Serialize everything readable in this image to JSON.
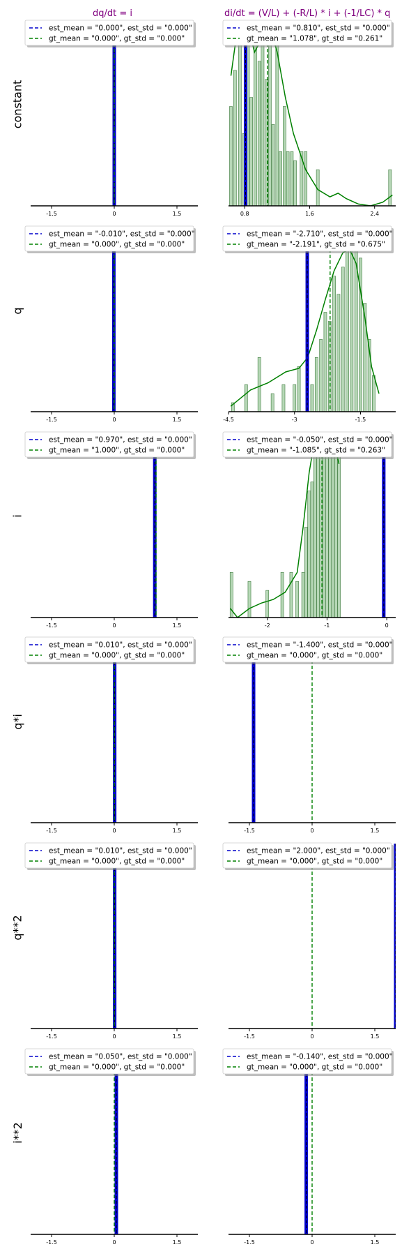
{
  "column_titles": [
    "dq/dt = i",
    "di/dt = (V/L) + (-R/L) * i + (-1/LC) * q"
  ],
  "row_labels": [
    "constant",
    "q",
    "i",
    "q*i",
    "q**2",
    "i**2"
  ],
  "colors": {
    "est": "#0000cc",
    "gt": "#008000",
    "title": "#800080",
    "hist_fill": "#b6d7b6"
  },
  "chart_data": [
    {
      "type": "histogram",
      "row": "constant",
      "column": "dq/dt = i",
      "xlim": [
        -2.0,
        2.0
      ],
      "xticks": [
        -1.5,
        0.0,
        1.5
      ],
      "legend": {
        "est": "est_mean = \"0.000\", est_std = \"0.000\"",
        "gt": "gt_mean = \"0.000\", gt_std = \"0.000\""
      },
      "est_mean": 0.0,
      "est_std": 0.0,
      "gt_mean": 0.0,
      "gt_std": 0.0,
      "gt_hist": []
    },
    {
      "type": "histogram",
      "row": "constant",
      "column": "di/dt = (V/L) + (-R/L) * i + (-1/LC) * q",
      "xlim": [
        0.6,
        2.66
      ],
      "xticks": [
        0.8,
        1.6,
        2.4
      ],
      "legend": {
        "est": "est_mean = \"0.810\", est_std = \"0.000\"",
        "gt": "gt_mean = \"1.078\", gt_std = \"0.261\""
      },
      "est_mean": 0.81,
      "est_std": 0.0,
      "gt_mean": 1.078,
      "gt_std": 0.261,
      "gt_hist": [
        [
          0.63,
          0.55
        ],
        [
          0.68,
          0.75
        ],
        [
          0.74,
          1.0
        ],
        [
          0.79,
          0.4
        ],
        [
          0.84,
          1.0
        ],
        [
          0.88,
          0.6
        ],
        [
          0.93,
          1.0
        ],
        [
          0.98,
          0.8
        ],
        [
          1.02,
          1.0
        ],
        [
          1.07,
          0.7
        ],
        [
          1.11,
          1.0
        ],
        [
          1.15,
          0.45
        ],
        [
          1.2,
          1.0
        ],
        [
          1.24,
          0.3
        ],
        [
          1.29,
          0.55
        ],
        [
          1.33,
          0.3
        ],
        [
          1.38,
          0.3
        ],
        [
          1.42,
          0.25
        ],
        [
          1.5,
          0.3
        ],
        [
          1.55,
          0.3
        ],
        [
          1.7,
          0.2
        ],
        [
          2.59,
          0.2
        ]
      ],
      "gt_kde": [
        [
          0.63,
          0.72
        ],
        [
          0.7,
          0.95
        ],
        [
          0.78,
          1.02
        ],
        [
          0.85,
          0.98
        ],
        [
          0.92,
          0.85
        ],
        [
          0.98,
          0.9
        ],
        [
          1.05,
          0.97
        ],
        [
          1.1,
          1.0
        ],
        [
          1.2,
          0.85
        ],
        [
          1.3,
          0.6
        ],
        [
          1.4,
          0.4
        ],
        [
          1.55,
          0.2
        ],
        [
          1.7,
          0.09
        ],
        [
          1.85,
          0.05
        ],
        [
          1.95,
          0.07
        ],
        [
          2.05,
          0.04
        ],
        [
          2.2,
          0.01
        ],
        [
          2.35,
          0.0
        ],
        [
          2.5,
          0.02
        ],
        [
          2.62,
          0.06
        ]
      ]
    },
    {
      "type": "histogram",
      "row": "q",
      "column": "dq/dt = i",
      "xlim": [
        -2.0,
        2.0
      ],
      "xticks": [
        -1.5,
        0.0,
        1.5
      ],
      "legend": {
        "est": "est_mean = \"-0.010\", est_std = \"0.000\"",
        "gt": "gt_mean = \"0.000\", gt_std = \"0.000\""
      },
      "est_mean": -0.01,
      "est_std": 0.0,
      "gt_mean": 0.0,
      "gt_std": 0.0,
      "gt_hist": []
    },
    {
      "type": "histogram",
      "row": "q",
      "column": "di/dt = (V/L) + (-R/L) * i + (-1/LC) * q",
      "xlim": [
        -4.5,
        -0.7
      ],
      "xticks": [
        -4.5,
        -3.0,
        -1.5
      ],
      "legend": {
        "est": "est_mean = \"-2.710\", est_std = \"0.000\"",
        "gt": "gt_mean = \"-2.191\", gt_std = \"0.675\""
      },
      "est_mean": -2.71,
      "est_std": 0.0,
      "gt_mean": -2.191,
      "gt_std": 0.675,
      "gt_hist": [
        [
          -4.4,
          0.05
        ],
        [
          -4.1,
          0.15
        ],
        [
          -3.8,
          0.3
        ],
        [
          -3.5,
          0.1
        ],
        [
          -3.25,
          0.15
        ],
        [
          -3.0,
          0.15
        ],
        [
          -2.9,
          0.25
        ],
        [
          -2.6,
          0.15
        ],
        [
          -2.5,
          0.3
        ],
        [
          -2.4,
          0.4
        ],
        [
          -2.3,
          0.55
        ],
        [
          -2.2,
          0.5
        ],
        [
          -2.1,
          0.75
        ],
        [
          -2.0,
          0.65
        ],
        [
          -1.9,
          0.8
        ],
        [
          -1.8,
          0.95
        ],
        [
          -1.7,
          1.0
        ],
        [
          -1.6,
          1.0
        ],
        [
          -1.5,
          0.85
        ],
        [
          -1.4,
          0.6
        ],
        [
          -1.3,
          0.4
        ],
        [
          -1.2,
          0.2
        ]
      ],
      "gt_kde": [
        [
          -4.45,
          0.03
        ],
        [
          -4.2,
          0.08
        ],
        [
          -4.0,
          0.12
        ],
        [
          -3.6,
          0.16
        ],
        [
          -3.2,
          0.22
        ],
        [
          -2.9,
          0.24
        ],
        [
          -2.7,
          0.3
        ],
        [
          -2.5,
          0.45
        ],
        [
          -2.3,
          0.62
        ],
        [
          -2.1,
          0.78
        ],
        [
          -1.9,
          0.88
        ],
        [
          -1.75,
          0.9
        ],
        [
          -1.6,
          0.82
        ],
        [
          -1.4,
          0.52
        ],
        [
          -1.25,
          0.25
        ],
        [
          -1.08,
          0.1
        ]
      ]
    },
    {
      "type": "histogram",
      "row": "i",
      "column": "dq/dt = i",
      "xlim": [
        -2.0,
        2.0
      ],
      "xticks": [
        -1.5,
        0.0,
        1.5
      ],
      "legend": {
        "est": "est_mean = \"0.970\", est_std = \"0.000\"",
        "gt": "gt_mean = \"1.000\", gt_std = \"0.000\""
      },
      "est_mean": 0.97,
      "est_std": 0.0,
      "gt_mean": 1.0,
      "gt_std": 0.0,
      "gt_hist": []
    },
    {
      "type": "histogram",
      "row": "i",
      "column": "di/dt = (V/L) + (-R/L) * i + (-1/LC) * q",
      "xlim": [
        -2.65,
        0.15
      ],
      "xticks": [
        -2,
        -1,
        0
      ],
      "legend": {
        "est": "est_mean = \"-0.050\", est_std = \"0.000\"",
        "gt": "gt_mean = \"-1.085\", gt_std = \"0.263\""
      },
      "est_mean": -0.05,
      "est_std": 0.0,
      "gt_mean": -1.085,
      "gt_std": 0.263,
      "gt_hist": [
        [
          -2.6,
          0.25
        ],
        [
          -2.3,
          0.2
        ],
        [
          -2.0,
          0.15
        ],
        [
          -1.75,
          0.25
        ],
        [
          -1.6,
          0.25
        ],
        [
          -1.5,
          0.2
        ],
        [
          -1.4,
          0.25
        ],
        [
          -1.35,
          0.5
        ],
        [
          -1.3,
          0.7
        ],
        [
          -1.25,
          0.75
        ],
        [
          -1.2,
          1.0
        ],
        [
          -1.15,
          0.9
        ],
        [
          -1.1,
          1.0
        ],
        [
          -1.05,
          0.95
        ],
        [
          -1.0,
          0.95
        ],
        [
          -0.95,
          1.0
        ],
        [
          -0.9,
          1.0
        ],
        [
          -0.85,
          1.0
        ],
        [
          -0.8,
          0.95
        ]
      ],
      "gt_kde": [
        [
          -2.62,
          0.05
        ],
        [
          -2.5,
          0.0
        ],
        [
          -2.3,
          0.05
        ],
        [
          -2.1,
          0.08
        ],
        [
          -1.9,
          0.1
        ],
        [
          -1.7,
          0.14
        ],
        [
          -1.5,
          0.25
        ],
        [
          -1.4,
          0.5
        ],
        [
          -1.3,
          0.8
        ],
        [
          -1.2,
          1.0
        ],
        [
          -1.1,
          1.0
        ],
        [
          -1.0,
          1.0
        ],
        [
          -0.9,
          1.0
        ],
        [
          -0.8,
          0.85
        ]
      ]
    },
    {
      "type": "histogram",
      "row": "q*i",
      "column": "dq/dt = i",
      "xlim": [
        -2.0,
        2.0
      ],
      "xticks": [
        -1.5,
        0.0,
        1.5
      ],
      "legend": {
        "est": "est_mean = \"0.010\", est_std = \"0.000\"",
        "gt": "gt_mean = \"0.000\", gt_std = \"0.000\""
      },
      "est_mean": 0.01,
      "est_std": 0.0,
      "gt_mean": 0.0,
      "gt_std": 0.0,
      "gt_hist": []
    },
    {
      "type": "histogram",
      "row": "q*i",
      "column": "di/dt = (V/L) + (-R/L) * i + (-1/LC) * q",
      "xlim": [
        -2.0,
        2.0
      ],
      "xticks": [
        -1.5,
        0.0,
        1.5
      ],
      "legend": {
        "est": "est_mean = \"-1.400\", est_std = \"0.000\"",
        "gt": "gt_mean = \"0.000\", gt_std = \"0.000\""
      },
      "est_mean": -1.4,
      "est_std": 0.0,
      "gt_mean": 0.0,
      "gt_std": 0.0,
      "gt_hist": []
    },
    {
      "type": "histogram",
      "row": "q**2",
      "column": "dq/dt = i",
      "xlim": [
        -2.0,
        2.0
      ],
      "xticks": [
        -1.5,
        0.0,
        1.5
      ],
      "legend": {
        "est": "est_mean = \"0.010\", est_std = \"0.000\"",
        "gt": "gt_mean = \"0.000\", gt_std = \"0.000\""
      },
      "est_mean": 0.01,
      "est_std": 0.0,
      "gt_mean": 0.0,
      "gt_std": 0.0,
      "gt_hist": []
    },
    {
      "type": "histogram",
      "row": "q**2",
      "column": "di/dt = (V/L) + (-R/L) * i + (-1/LC) * q",
      "xlim": [
        -2.0,
        2.0
      ],
      "xticks": [
        -1.5,
        0.0,
        1.5
      ],
      "legend": {
        "est": "est_mean = \"2.000\", est_std = \"0.000\"",
        "gt": "gt_mean = \"0.000\", gt_std = \"0.000\""
      },
      "est_mean": 2.0,
      "est_std": 0.0,
      "gt_mean": 0.0,
      "gt_std": 0.0,
      "gt_hist": []
    },
    {
      "type": "histogram",
      "row": "i**2",
      "column": "dq/dt = i",
      "xlim": [
        -2.0,
        2.0
      ],
      "xticks": [
        -1.5,
        0.0,
        1.5
      ],
      "legend": {
        "est": "est_mean = \"0.050\", est_std = \"0.000\"",
        "gt": "gt_mean = \"0.000\", gt_std = \"0.000\""
      },
      "est_mean": 0.05,
      "est_std": 0.0,
      "gt_mean": 0.0,
      "gt_std": 0.0,
      "gt_hist": []
    },
    {
      "type": "histogram",
      "row": "i**2",
      "column": "di/dt = (V/L) + (-R/L) * i + (-1/LC) * q",
      "xlim": [
        -2.0,
        2.0
      ],
      "xticks": [
        -1.5,
        0.0,
        1.5
      ],
      "legend": {
        "est": "est_mean = \"-0.140\", est_std = \"0.000\"",
        "gt": "gt_mean = \"0.000\", gt_std = \"0.000\""
      },
      "est_mean": -0.14,
      "est_std": 0.0,
      "gt_mean": 0.0,
      "gt_std": 0.0,
      "gt_hist": []
    }
  ]
}
